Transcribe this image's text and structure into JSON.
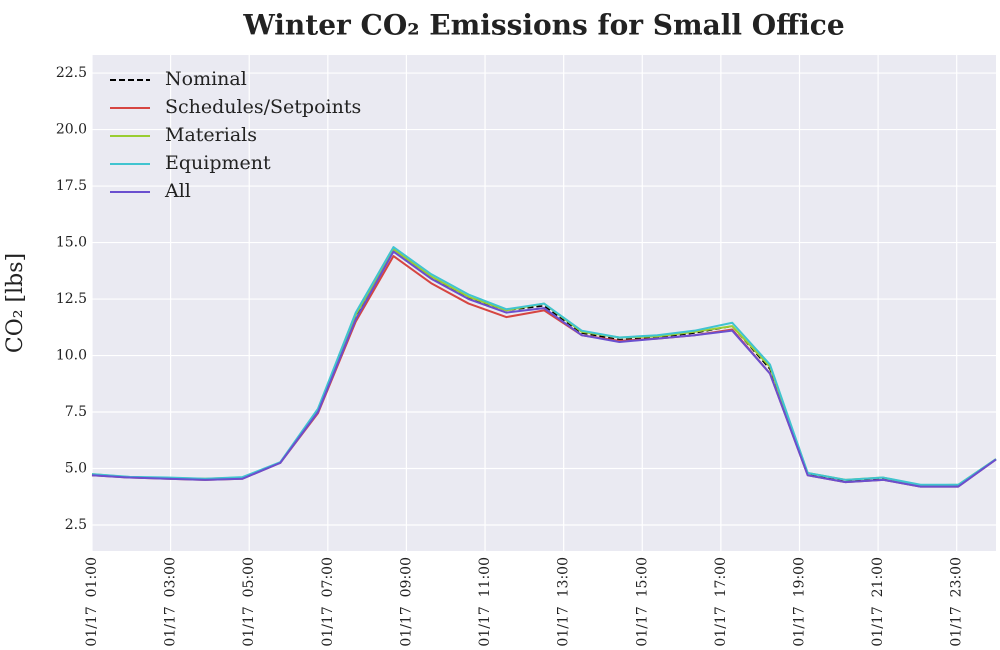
{
  "chart_data": {
    "type": "line",
    "title": "Winter CO₂ Emissions for Small Office",
    "y_label": "CO₂ [lbs]",
    "x": [
      1,
      1.96,
      2.92,
      3.88,
      4.83,
      5.79,
      6.75,
      7.71,
      8.67,
      9.63,
      10.58,
      11.54,
      12.5,
      13.46,
      14.42,
      15.38,
      16.33,
      17.29,
      18.25,
      19.21,
      20.17,
      21.13,
      22.08,
      23.04,
      24
    ],
    "xlim": [
      1,
      24
    ],
    "xticks": [
      {
        "value": 1,
        "label": "01/17  01:00"
      },
      {
        "value": 3,
        "label": "01/17  03:00"
      },
      {
        "value": 5,
        "label": "01/17  05:00"
      },
      {
        "value": 7,
        "label": "01/17  07:00"
      },
      {
        "value": 9,
        "label": "01/17  09:00"
      },
      {
        "value": 11,
        "label": "01/17  11:00"
      },
      {
        "value": 13,
        "label": "01/17  13:00"
      },
      {
        "value": 15,
        "label": "01/17  15:00"
      },
      {
        "value": 17,
        "label": "01/17  17:00"
      },
      {
        "value": 19,
        "label": "01/17  19:00"
      },
      {
        "value": 21,
        "label": "01/17  21:00"
      },
      {
        "value": 23,
        "label": "01/17  23:00"
      }
    ],
    "ylim": [
      1.35,
      23.3
    ],
    "yticks": [
      2.5,
      {
        "value": 5,
        "label": "5.0"
      },
      7.5,
      {
        "value": 10,
        "label": "10.0"
      },
      12.5,
      {
        "value": 15,
        "label": "15.0"
      },
      17.5,
      {
        "value": 20,
        "label": "20.0"
      },
      22.5
    ],
    "grid": true,
    "legend": "upper left",
    "series": [
      {
        "name": "Nominal",
        "color": "#000000",
        "linestyle": "dashed",
        "values": [
          4.7,
          4.6,
          4.57,
          4.52,
          4.57,
          5.25,
          7.55,
          11.7,
          14.7,
          13.45,
          12.55,
          12.0,
          12.2,
          11.0,
          10.7,
          10.8,
          11.0,
          11.3,
          9.4,
          4.75,
          4.45,
          4.55,
          4.25,
          4.25,
          5.4
        ]
      },
      {
        "name": "Schedules/Setpoints",
        "color": "#d64541",
        "linestyle": "solid",
        "values": [
          4.7,
          4.6,
          4.55,
          4.5,
          4.55,
          5.25,
          7.45,
          11.5,
          14.4,
          13.2,
          12.3,
          11.7,
          12.0,
          10.9,
          10.65,
          10.75,
          10.9,
          11.15,
          9.2,
          4.7,
          4.4,
          4.5,
          4.2,
          4.2,
          5.4
        ]
      },
      {
        "name": "Materials",
        "color": "#9acd32",
        "linestyle": "solid",
        "values": [
          4.75,
          4.62,
          4.58,
          4.55,
          4.6,
          5.27,
          7.6,
          11.8,
          14.7,
          13.5,
          12.6,
          12.0,
          12.3,
          11.05,
          10.8,
          10.85,
          11.05,
          11.3,
          9.5,
          4.8,
          4.5,
          4.6,
          4.25,
          4.28,
          5.42
        ]
      },
      {
        "name": "Equipment",
        "color": "#40c4d0",
        "linestyle": "solid",
        "values": [
          4.75,
          4.63,
          4.6,
          4.55,
          4.62,
          5.28,
          7.65,
          11.9,
          14.8,
          13.6,
          12.7,
          12.05,
          12.3,
          11.1,
          10.8,
          10.9,
          11.1,
          11.45,
          9.6,
          4.8,
          4.5,
          4.6,
          4.28,
          4.28,
          5.42
        ]
      },
      {
        "name": "All",
        "color": "#6a4fcf",
        "linestyle": "solid",
        "values": [
          4.7,
          4.6,
          4.55,
          4.5,
          4.55,
          5.25,
          7.5,
          11.6,
          14.6,
          13.4,
          12.5,
          11.9,
          12.1,
          10.9,
          10.6,
          10.75,
          10.9,
          11.1,
          9.2,
          4.7,
          4.4,
          4.5,
          4.2,
          4.2,
          5.4
        ]
      }
    ]
  }
}
